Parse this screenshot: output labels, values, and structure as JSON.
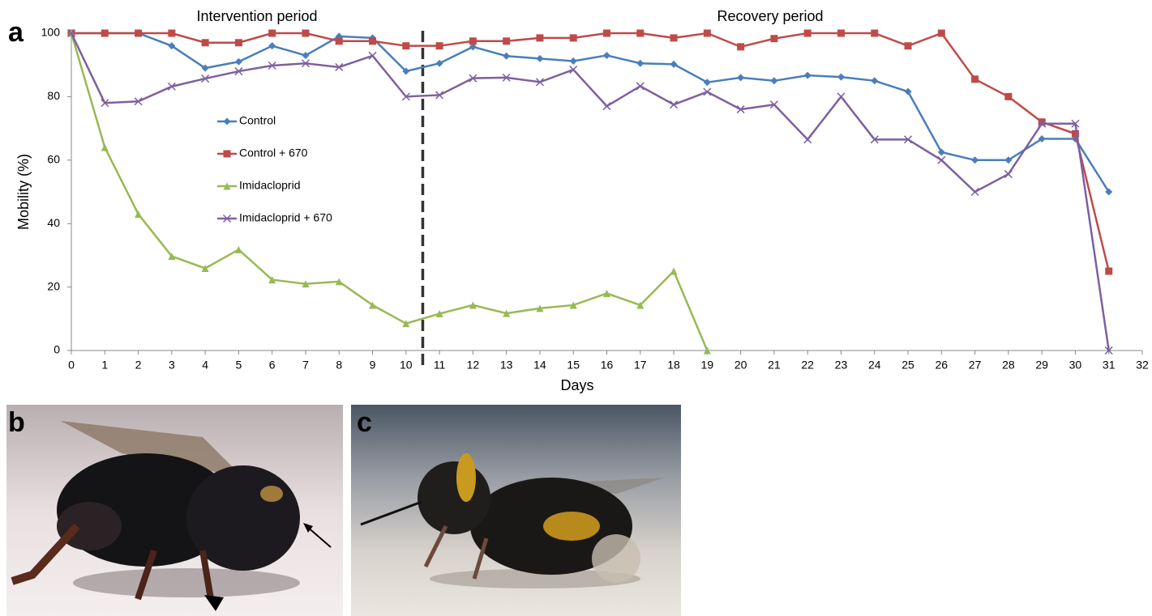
{
  "chart_data": {
    "type": "line",
    "panel_label": "a",
    "x_label": "Days",
    "y_label": "Mobility (%)",
    "annotations": [
      "Intervention period",
      "Recovery period"
    ],
    "divider_x": 10.5,
    "x": [
      0,
      1,
      2,
      3,
      4,
      5,
      6,
      7,
      8,
      9,
      10,
      11,
      12,
      13,
      14,
      15,
      16,
      17,
      18,
      19,
      20,
      21,
      22,
      23,
      24,
      25,
      26,
      27,
      28,
      29,
      30,
      31
    ],
    "series": [
      {
        "name": "Control",
        "color": "#4a7ebb",
        "marker": "diamond",
        "values": [
          100,
          100,
          100,
          96,
          89,
          91,
          96,
          93,
          99,
          98.5,
          88,
          90.5,
          95.7,
          92.8,
          92,
          91.2,
          93,
          90.5,
          90.2,
          84.5,
          86,
          85,
          86.7,
          86.2,
          85,
          81.6,
          62.5,
          60,
          60,
          66.7,
          66.7,
          50
        ]
      },
      {
        "name": "Control + 670",
        "color": "#be4b48",
        "marker": "square",
        "values": [
          100,
          100,
          100,
          100,
          97,
          97,
          100,
          100,
          97.5,
          97.5,
          96,
          96,
          97.5,
          97.5,
          98.5,
          98.5,
          100,
          100,
          98.5,
          100,
          95.7,
          98.3,
          100,
          100,
          100,
          96,
          100,
          85.5,
          80,
          72,
          68.3,
          25
        ]
      },
      {
        "name": "Imidacloprid",
        "color": "#98b954",
        "marker": "triangle",
        "values": [
          100,
          64,
          43,
          29.7,
          25.9,
          31.8,
          22.3,
          21,
          21.7,
          14.3,
          8.5,
          11.6,
          14.3,
          11.7,
          13.3,
          14.3,
          18,
          14.3,
          25,
          0,
          null,
          null,
          null,
          null,
          null,
          null,
          null,
          null,
          null,
          null,
          null,
          null
        ]
      },
      {
        "name": "Imidacloprid + 670",
        "color": "#7d60a0",
        "marker": "x",
        "values": [
          100,
          78,
          78.5,
          83.2,
          85.7,
          88,
          89.8,
          90.5,
          89.3,
          92.9,
          80,
          80.5,
          85.8,
          86,
          84.6,
          88.5,
          77,
          83.3,
          77.5,
          81.5,
          76,
          77.5,
          66.5,
          80,
          66.5,
          66.5,
          60,
          50,
          55.6,
          71.5,
          71.5,
          0
        ]
      }
    ],
    "xlim": [
      0,
      32
    ],
    "ylim": [
      0,
      100
    ],
    "xticks": [
      0,
      1,
      2,
      3,
      4,
      5,
      6,
      7,
      8,
      9,
      10,
      11,
      12,
      13,
      14,
      15,
      16,
      17,
      18,
      19,
      20,
      21,
      22,
      23,
      24,
      25,
      26,
      27,
      28,
      29,
      30,
      31,
      32
    ],
    "yticks": [
      0,
      20,
      40,
      60,
      80,
      100
    ],
    "grid": false,
    "legend": "left"
  },
  "photos": [
    {
      "label": "b"
    },
    {
      "label": "c"
    }
  ]
}
